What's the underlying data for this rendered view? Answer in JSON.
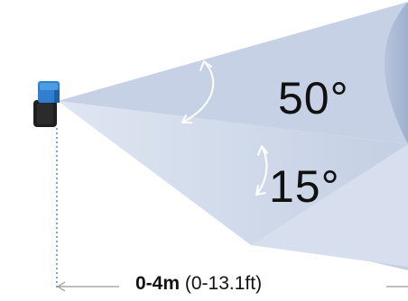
{
  "diagram": {
    "horizontal_angle": "50°",
    "vertical_angle": "15°",
    "range_metric": "0-4m",
    "range_imperial": "(0-13.1ft)",
    "colors": {
      "beam_fill": "#d4dcec",
      "beam_top": "#bec9de",
      "beam_side": "#a8b6d1",
      "sensor_body": "#1f1f1f",
      "sensor_cap": "#2f7fd1",
      "dotted_line": "#4a90c8",
      "arrow_line": "#999999"
    },
    "icons": [
      "sensor-icon",
      "angle-arrow-icon",
      "range-arrow-icon"
    ]
  }
}
